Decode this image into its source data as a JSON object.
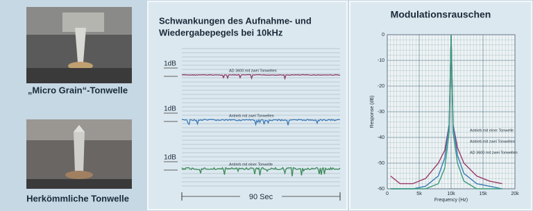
{
  "left_panel": {
    "captions": [
      "„Micro Grain“-Tonwelle",
      "Herkömmliche Tonwelle"
    ]
  },
  "level_chart": {
    "title_lines": [
      "Schwankungen des Aufnahme- und",
      "Wiedergabepegels bei 10kHz"
    ],
    "scale_labels": [
      "1dB",
      "1dB",
      "1dB"
    ],
    "traces": [
      {
        "label": "AD 3600 mit zwei Tonwellen",
        "color": "#8a3a6a"
      },
      {
        "label": "Antrieb mit zwei Tonwellen",
        "color": "#3a7ab8"
      },
      {
        "label": "Antrieb mit einer Tonwelle",
        "color": "#3a8a5a"
      }
    ],
    "duration_label": "90 Sec"
  },
  "chart_data": {
    "type": "line",
    "title": "Modulationsrauschen",
    "y_label": "Response (dB)",
    "x_label": "Frequency (Hz)",
    "x": [
      500,
      2000,
      4000,
      6000,
      8000,
      9000,
      9700,
      10000,
      10300,
      11000,
      12000,
      14000,
      16000,
      18000
    ],
    "series": [
      {
        "name": "Antrieb mit einer Tonwelle",
        "color": "#9a3a6a",
        "values": [
          -55,
          -58,
          -58,
          -56,
          -50,
          -45,
          -35,
          0,
          -35,
          -44,
          -50,
          -55,
          -57,
          -58
        ]
      },
      {
        "name": "Antrieb mit zwei Tonwellen",
        "color": "#3a7ab8",
        "values": [
          -60,
          -60,
          -60,
          -59,
          -55,
          -48,
          -35,
          0,
          -35,
          -47,
          -54,
          -58,
          -59,
          -60
        ]
      },
      {
        "name": "AD 3600 mit zwei Tonwellen",
        "color": "#3a9a7a",
        "values": [
          -60,
          -60,
          -60,
          -60,
          -58,
          -52,
          -38,
          0,
          -38,
          -50,
          -57,
          -60,
          -60,
          -60
        ]
      }
    ],
    "xlim": [
      0,
      20000
    ],
    "ylim": [
      -60,
      0
    ],
    "xticks": [
      0,
      {
        "value": 5000,
        "label": "5k"
      },
      {
        "value": 10000,
        "label": "10k"
      },
      {
        "value": 15000,
        "label": "15k"
      },
      {
        "value": 20000,
        "label": "20k"
      }
    ],
    "yticks": [
      0,
      -10,
      -20,
      -30,
      -40,
      -50,
      -60
    ],
    "grid": true
  }
}
